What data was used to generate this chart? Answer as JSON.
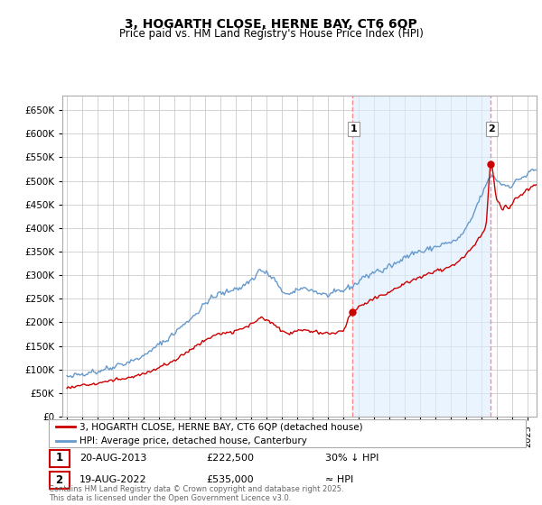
{
  "title": "3, HOGARTH CLOSE, HERNE BAY, CT6 6QP",
  "subtitle": "Price paid vs. HM Land Registry's House Price Index (HPI)",
  "legend_label_red": "3, HOGARTH CLOSE, HERNE BAY, CT6 6QP (detached house)",
  "legend_label_blue": "HPI: Average price, detached house, Canterbury",
  "annotation1_label": "1",
  "annotation1_date": "20-AUG-2013",
  "annotation1_price": "£222,500",
  "annotation1_note": "30% ↓ HPI",
  "annotation2_label": "2",
  "annotation2_date": "19-AUG-2022",
  "annotation2_price": "£535,000",
  "annotation2_note": "≈ HPI",
  "footer": "Contains HM Land Registry data © Crown copyright and database right 2025.\nThis data is licensed under the Open Government Licence v3.0.",
  "red_color": "#cc0000",
  "blue_color": "#6699cc",
  "blue_fill": "#ddeeff",
  "vline_color": "#ff8888",
  "background_color": "#ffffff",
  "grid_color": "#cccccc",
  "ylim": [
    0,
    680000
  ],
  "yticks": [
    0,
    50000,
    100000,
    150000,
    200000,
    250000,
    300000,
    350000,
    400000,
    450000,
    500000,
    550000,
    600000,
    650000
  ],
  "year_start": 1995,
  "year_end": 2025
}
